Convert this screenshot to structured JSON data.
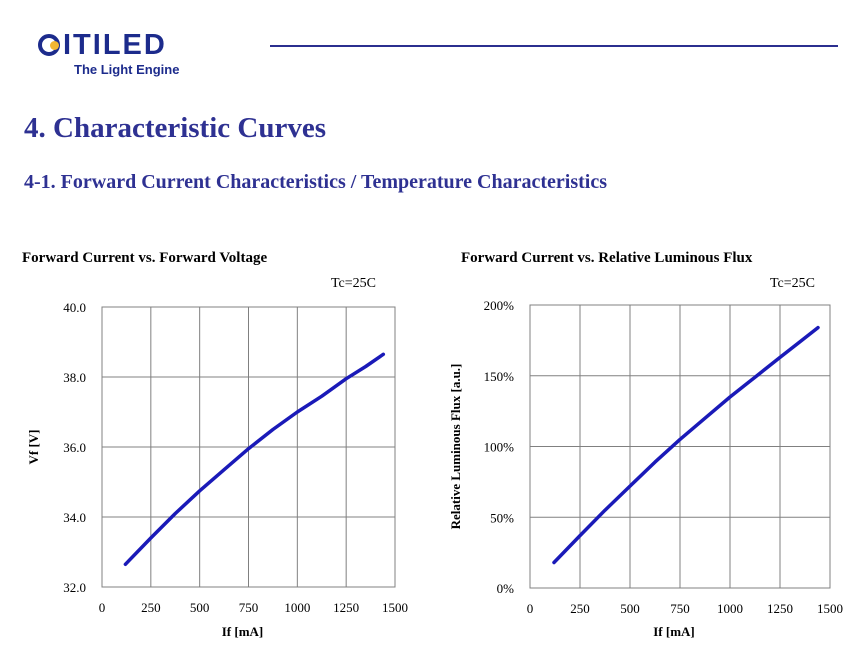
{
  "header": {
    "logo_text": "CITILED",
    "logo_tagline": "The Light Engine",
    "colors": {
      "brand_blue": "#1c2b8c",
      "accent_yellow": "#f2b632",
      "heading": "#2e3192",
      "curve": "#1a1ab8"
    }
  },
  "section": {
    "title": "4. Characteristic Curves",
    "subtitle": "4-1. Forward Current Characteristics / Temperature Characteristics"
  },
  "chart_data": [
    {
      "type": "line",
      "title": "Forward Current vs. Forward Voltage",
      "condition": "Tc=25C",
      "xlabel": "If [mA]",
      "ylabel": "Vf [V]",
      "xlim": [
        0,
        1500
      ],
      "ylim": [
        32.0,
        40.0
      ],
      "xticks": [
        0,
        250,
        500,
        750,
        1000,
        1250,
        1500
      ],
      "xtick_labels": [
        "0",
        "250",
        "500",
        "750",
        "1000",
        "1250",
        "1500"
      ],
      "yticks": [
        32.0,
        34.0,
        36.0,
        38.0,
        40.0
      ],
      "ytick_labels": [
        "32.0",
        "34.0",
        "36.0",
        "38.0",
        "40.0"
      ],
      "grid": true,
      "series": [
        {
          "x": [
            120,
            250,
            375,
            500,
            625,
            750,
            875,
            1000,
            1125,
            1250,
            1350,
            1440
          ],
          "y": [
            32.65,
            33.4,
            34.1,
            34.75,
            35.35,
            35.95,
            36.5,
            37.0,
            37.45,
            37.95,
            38.3,
            38.65
          ]
        }
      ]
    },
    {
      "type": "line",
      "title": "Forward Current vs. Relative Luminous Flux",
      "condition": "Tc=25C",
      "xlabel": "If [mA]",
      "ylabel": "Relative Luminous Flux [a.u.]",
      "xlim": [
        0,
        1500
      ],
      "ylim": [
        0,
        200
      ],
      "xticks": [
        0,
        250,
        500,
        750,
        1000,
        1250,
        1500
      ],
      "xtick_labels": [
        "0",
        "250",
        "500",
        "750",
        "1000",
        "1250",
        "1500"
      ],
      "yticks": [
        0,
        50,
        100,
        150,
        200
      ],
      "ytick_labels": [
        "0%",
        "50%",
        "100%",
        "150%",
        "200%"
      ],
      "grid": true,
      "series": [
        {
          "x": [
            120,
            250,
            375,
            500,
            625,
            750,
            875,
            1000,
            1125,
            1250,
            1350,
            1440
          ],
          "y": [
            18,
            37,
            55,
            72,
            89,
            105,
            120,
            135,
            149,
            163,
            174,
            184
          ]
        }
      ]
    }
  ]
}
